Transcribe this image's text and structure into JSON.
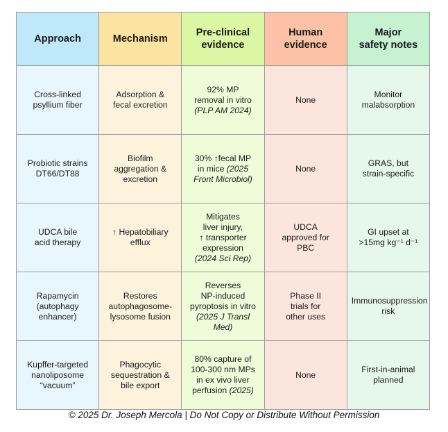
{
  "table": {
    "headers": [
      [
        "Approach"
      ],
      [
        "Mechanism"
      ],
      [
        "Pre-clinical",
        "evidence"
      ],
      [
        "Human",
        "evidence"
      ],
      [
        "Major",
        "safety notes"
      ]
    ],
    "rows": [
      [
        [
          {
            "t": "Cross-linked"
          },
          {
            "t": "psyllium fiber"
          }
        ],
        [
          {
            "t": "Adsorption &"
          },
          {
            "t": "fecal excretion"
          }
        ],
        [
          {
            "t": "92% MP"
          },
          {
            "t": "removal in vitro"
          },
          {
            "t": "(PLP AM 2024)",
            "i": true
          }
        ],
        [
          {
            "t": "None"
          }
        ],
        [
          {
            "t": "Monitor"
          },
          {
            "t": "malabsorption"
          }
        ]
      ],
      [
        [
          {
            "t": "Probiotic strains"
          },
          {
            "t": "DT66/DT88"
          }
        ],
        [
          {
            "t": "Biofilm"
          },
          {
            "t": "aggregation &"
          },
          {
            "t": "excretion"
          }
        ],
        [
          {
            "t": "30% ↑fecal MP"
          },
          {
            "t": "in mice "
          },
          {
            "t": "(2025",
            "i": true,
            "inline": true
          },
          {
            "t": "Front Microbiol)",
            "i": true
          }
        ],
        [
          {
            "t": "None"
          }
        ],
        [
          {
            "t": "GRAS, but"
          },
          {
            "t": "strain-specific"
          }
        ]
      ],
      [
        [
          {
            "t": "UDCA bile"
          },
          {
            "t": "acid therapy"
          }
        ],
        [
          {
            "t": "↑ Hepatobiliary"
          },
          {
            "t": "efflux"
          }
        ],
        [
          {
            "t": "Mitigates"
          },
          {
            "t": "liver injury,"
          },
          {
            "t": "↑ transporter"
          },
          {
            "t": "expression"
          },
          {
            "t": "(2024 Sci Rep)",
            "i": true
          }
        ],
        [
          {
            "t": "UDCA"
          },
          {
            "t": "approved for"
          },
          {
            "t": "PBC"
          }
        ],
        [
          {
            "t": "GI upset at"
          },
          {
            "t": ">15mg kg⁻¹ d⁻¹"
          }
        ]
      ],
      [
        [
          {
            "t": "Rapamycin"
          },
          {
            "t": "(autophagy"
          },
          {
            "t": "enhancer)"
          }
        ],
        [
          {
            "t": "Restores"
          },
          {
            "t": "autophagosome-"
          },
          {
            "t": "lysosome fusion"
          }
        ],
        [
          {
            "t": "Reverses"
          },
          {
            "t": "NP-induced"
          },
          {
            "t": "pyroptosis in vitro"
          },
          {
            "t": "(2025 J Transl",
            "i": true
          },
          {
            "t": "Med)",
            "i": true
          }
        ],
        [
          {
            "t": "Phase II"
          },
          {
            "t": "trials for"
          },
          {
            "t": "other uses"
          }
        ],
        [
          {
            "t": "Immunosuppression"
          },
          {
            "t": "risk"
          }
        ]
      ],
      [
        [
          {
            "t": "Kupffer-targeted"
          },
          {
            "t": "nanoliposome"
          },
          {
            "t": "“vacuum”"
          }
        ],
        [
          {
            "t": "Phagocytic"
          },
          {
            "t": "sequestration &"
          },
          {
            "t": "bile export"
          }
        ],
        [
          {
            "t": "80% capture of"
          },
          {
            "t": "100-300 nm MPs"
          },
          {
            "t": "in ex vivo liver"
          },
          {
            "t": "perfusion "
          },
          {
            "t": "(2025)",
            "i": true,
            "inline": true
          }
        ],
        [
          {
            "t": "None"
          }
        ],
        [
          {
            "t": "First-in-animal"
          },
          {
            "t": "planned"
          }
        ]
      ]
    ]
  },
  "footer": "© 2025 Dr. Joseph Mercola | Do Not Copy or Distribute Without Permission",
  "colors": {
    "header_bg": [
      "#bfe8fb",
      "#fde3a0",
      "#dcf7a3",
      "#fcc1a6",
      "#c6f2d2"
    ],
    "cell_bg": [
      "#e8f6fd",
      "#fdf3dc",
      "#f0fbd9",
      "#fce5dc",
      "#e6f8ec"
    ],
    "border": "#9a9a9a"
  }
}
